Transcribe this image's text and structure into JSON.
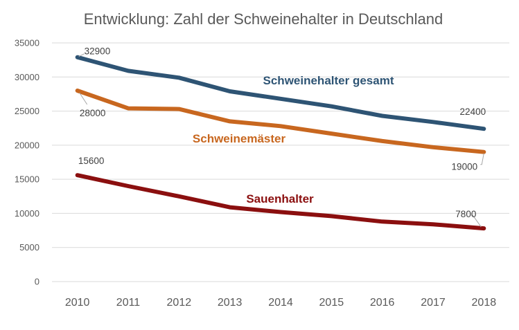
{
  "chart_data": {
    "type": "line",
    "title": "Entwicklung: Zahl der Schweinehalter in Deutschland",
    "xlabel": "",
    "ylabel": "",
    "x": [
      "2010",
      "2011",
      "2012",
      "2013",
      "2014",
      "2015",
      "2016",
      "2017",
      "2018"
    ],
    "ylim": [
      0,
      35000
    ],
    "yticks": [
      0,
      5000,
      10000,
      15000,
      20000,
      25000,
      30000,
      35000
    ],
    "grid": true,
    "legend": "none",
    "series": [
      {
        "name": "Schweinehalter gesamt",
        "color": "#2e5474",
        "values": [
          32900,
          30900,
          29900,
          27900,
          26800,
          25700,
          24300,
          23400,
          22400
        ],
        "labels": [
          {
            "index": 0,
            "text": "32900"
          },
          {
            "index": 8,
            "text": "22400"
          }
        ]
      },
      {
        "name": "Schweinemäster",
        "color": "#c8671f",
        "values": [
          28000,
          25400,
          25300,
          23500,
          22800,
          21700,
          20600,
          19700,
          19000
        ],
        "labels": [
          {
            "index": 0,
            "text": "28000"
          },
          {
            "index": 8,
            "text": "19000"
          }
        ]
      },
      {
        "name": "Sauenhalter",
        "color": "#8b0f0f",
        "values": [
          15600,
          14000,
          12500,
          10900,
          10200,
          9600,
          8800,
          8400,
          7800
        ],
        "labels": [
          {
            "index": 0,
            "text": "15600"
          },
          {
            "index": 8,
            "text": "7800"
          }
        ]
      }
    ]
  }
}
